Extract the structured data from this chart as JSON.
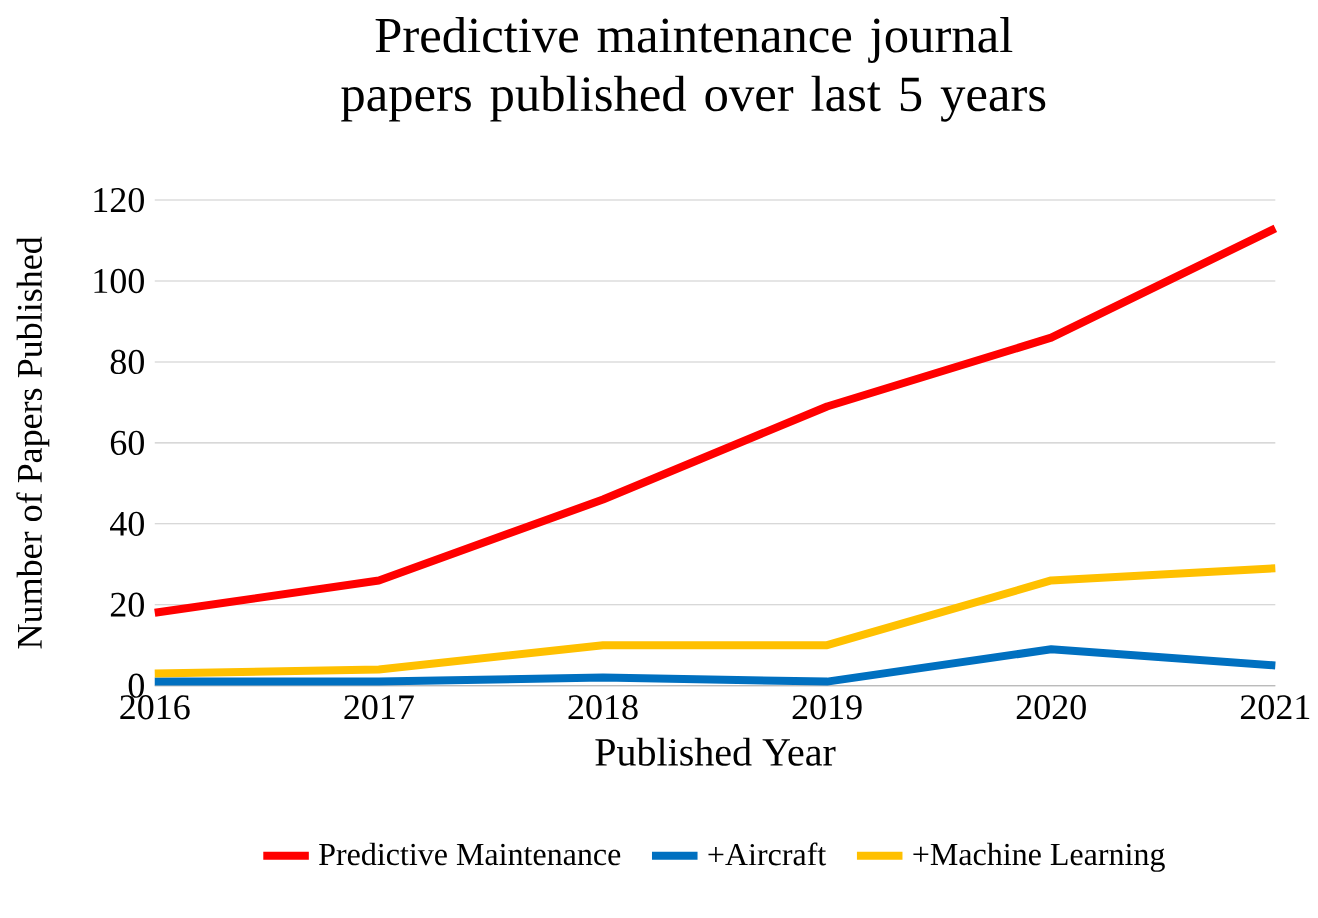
{
  "chart_data": {
    "type": "line",
    "title": "Predictive maintenance journal papers published over last 5 years",
    "xlabel": "Published Year",
    "ylabel": "Number of Papers Published",
    "x": [
      2016,
      2017,
      2018,
      2019,
      2020,
      2021
    ],
    "series": [
      {
        "name": "Predictive Maintenance",
        "color": "#ff0000",
        "values": [
          18,
          26,
          46,
          69,
          86,
          113
        ]
      },
      {
        "name": "+Aircraft",
        "color": "#0070c0",
        "values": [
          1,
          1,
          2,
          1,
          9,
          5
        ]
      },
      {
        "name": "+Machine Learning",
        "color": "#ffc000",
        "values": [
          3,
          4,
          10,
          10,
          26,
          29
        ]
      }
    ],
    "xlim": [
      2016,
      2021
    ],
    "xticks": [
      2016,
      2017,
      2018,
      2019,
      2020,
      2021
    ],
    "ylim": [
      0,
      120
    ],
    "yticks": [
      0,
      20,
      40,
      60,
      80,
      100,
      120
    ],
    "grid": "y",
    "legend": "bottom",
    "marker": "none",
    "line_style": "solid"
  }
}
